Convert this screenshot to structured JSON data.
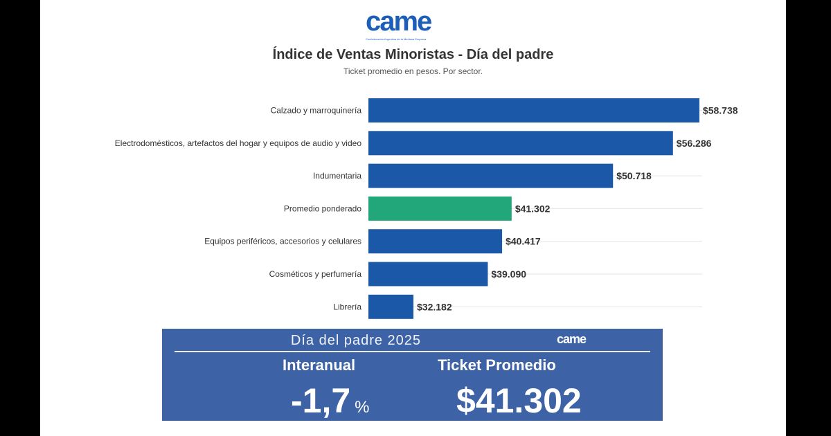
{
  "logo": {
    "text": "came",
    "subtext": "Confederación Argentina de la Mediana Empresa"
  },
  "chart_data": {
    "type": "bar",
    "orientation": "horizontal",
    "title": "Índice de Ventas Minoristas - Día del padre",
    "subtitle": "Ticket promedio en pesos. Por sector.",
    "categories": [
      "Calzado y marroquinería",
      "Electrodomésticos, artefactos del hogar y equipos de audio y video",
      "Indumentaria",
      "Promedio ponderado",
      "Equipos periféricos, accesorios y celulares",
      "Cosméticos y perfumería",
      "Librería"
    ],
    "values": [
      58738,
      56286,
      50718,
      41302,
      40417,
      39090,
      32182
    ],
    "value_labels": [
      "$58.738",
      "$56.286",
      "$50.718",
      "$41.302",
      "$40.417",
      "$39.090",
      "$32.182"
    ],
    "colors": [
      "#1c58a8",
      "#1c58a8",
      "#1c58a8",
      "#22a77a",
      "#1c58a8",
      "#1c58a8",
      "#1c58a8"
    ],
    "xlim": [
      28000,
      59000
    ],
    "grid": true,
    "legend": "none"
  },
  "panel": {
    "title": "Día del padre 2025",
    "logo": "came",
    "interanual_label": "Interanual",
    "interanual_value": "-1,7",
    "interanual_unit": "%",
    "ticket_label": "Ticket Promedio",
    "ticket_value": "$41.302",
    "background": "#3d63a6"
  }
}
